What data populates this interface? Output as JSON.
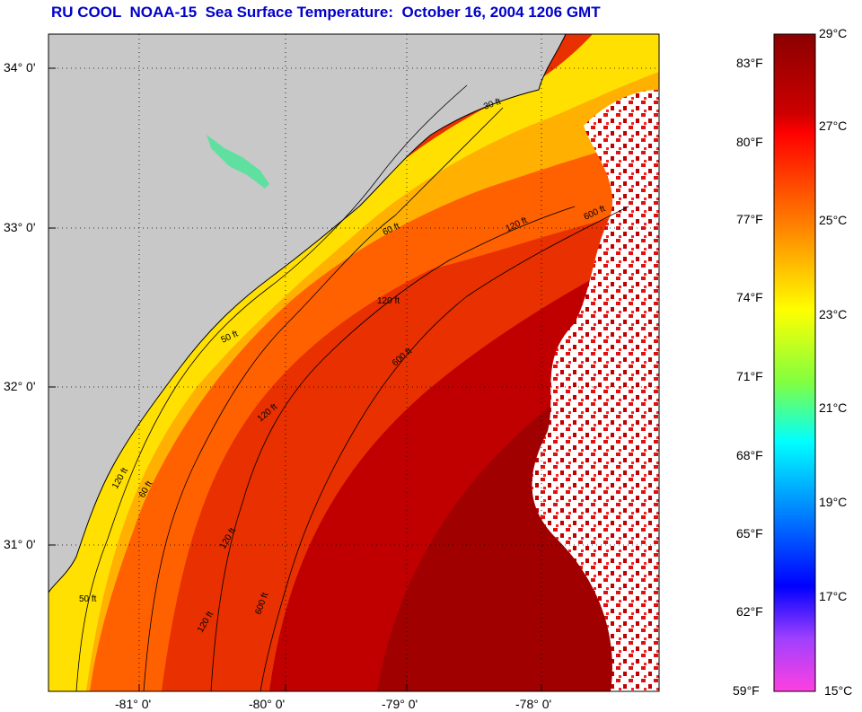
{
  "title": "RU COOL  NOAA-15  Sea Surface Temperature:  October 16, 2004 1206 GMT",
  "map": {
    "lat_labels": [
      "34° 0'",
      "33° 0'",
      "32° 0'",
      "31° 0'"
    ],
    "lon_labels": [
      "-81° 0'",
      "-80° 0'",
      "-79° 0'",
      "-78° 0'"
    ],
    "contour_labels": [
      "30 ft",
      "60 ft",
      "120 ft",
      "600 ft",
      "50 ft",
      "120 ft",
      "600 ft",
      "120 ft",
      "120 ft",
      "50 ft",
      "120 ft",
      "600 ft",
      "120 ft",
      "60 ft"
    ],
    "colors": {
      "land": "#c8c8c8",
      "cloud": "#ffffff",
      "border": "#000000"
    }
  },
  "colorbar": {
    "fahrenheit_labels": [
      "83°F",
      "80°F",
      "77°F",
      "74°F",
      "71°F",
      "68°F",
      "65°F",
      "62°F",
      "59°F"
    ],
    "celsius_labels": [
      "29°C",
      "27°C",
      "25°C",
      "23°C",
      "21°C",
      "19°C",
      "17°C",
      "15°C"
    ],
    "range_celsius": [
      15,
      29
    ]
  }
}
